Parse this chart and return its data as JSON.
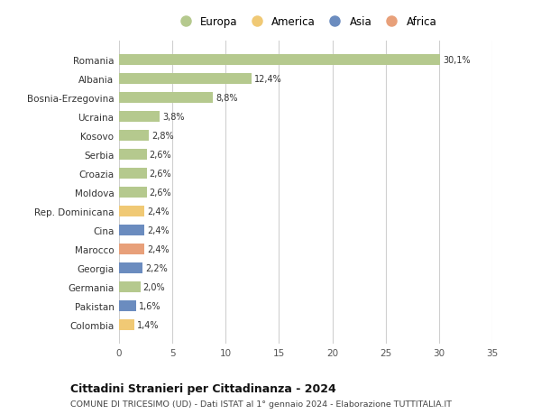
{
  "countries": [
    "Romania",
    "Albania",
    "Bosnia-Erzegovina",
    "Ucraina",
    "Kosovo",
    "Serbia",
    "Croazia",
    "Moldova",
    "Rep. Dominicana",
    "Cina",
    "Marocco",
    "Georgia",
    "Germania",
    "Pakistan",
    "Colombia"
  ],
  "values": [
    30.1,
    12.4,
    8.8,
    3.8,
    2.8,
    2.6,
    2.6,
    2.6,
    2.4,
    2.4,
    2.4,
    2.2,
    2.0,
    1.6,
    1.4
  ],
  "labels": [
    "30,1%",
    "12,4%",
    "8,8%",
    "3,8%",
    "2,8%",
    "2,6%",
    "2,6%",
    "2,6%",
    "2,4%",
    "2,4%",
    "2,4%",
    "2,2%",
    "2,0%",
    "1,6%",
    "1,4%"
  ],
  "colors": [
    "#b5c98e",
    "#b5c98e",
    "#b5c98e",
    "#b5c98e",
    "#b5c98e",
    "#b5c98e",
    "#b5c98e",
    "#b5c98e",
    "#f0c975",
    "#6b8cbf",
    "#e8a07a",
    "#6b8cbf",
    "#b5c98e",
    "#6b8cbf",
    "#f0c975"
  ],
  "legend_labels": [
    "Europa",
    "America",
    "Asia",
    "Africa"
  ],
  "legend_colors": [
    "#b5c98e",
    "#f0c975",
    "#6b8cbf",
    "#e8a07a"
  ],
  "title": "Cittadini Stranieri per Cittadinanza - 2024",
  "subtitle": "COMUNE DI TRICESIMO (UD) - Dati ISTAT al 1° gennaio 2024 - Elaborazione TUTTITALIA.IT",
  "xlim": [
    0,
    35
  ],
  "xticks": [
    0,
    5,
    10,
    15,
    20,
    25,
    30,
    35
  ],
  "background_color": "#ffffff",
  "grid_color": "#d0d0d0",
  "bar_height": 0.55
}
